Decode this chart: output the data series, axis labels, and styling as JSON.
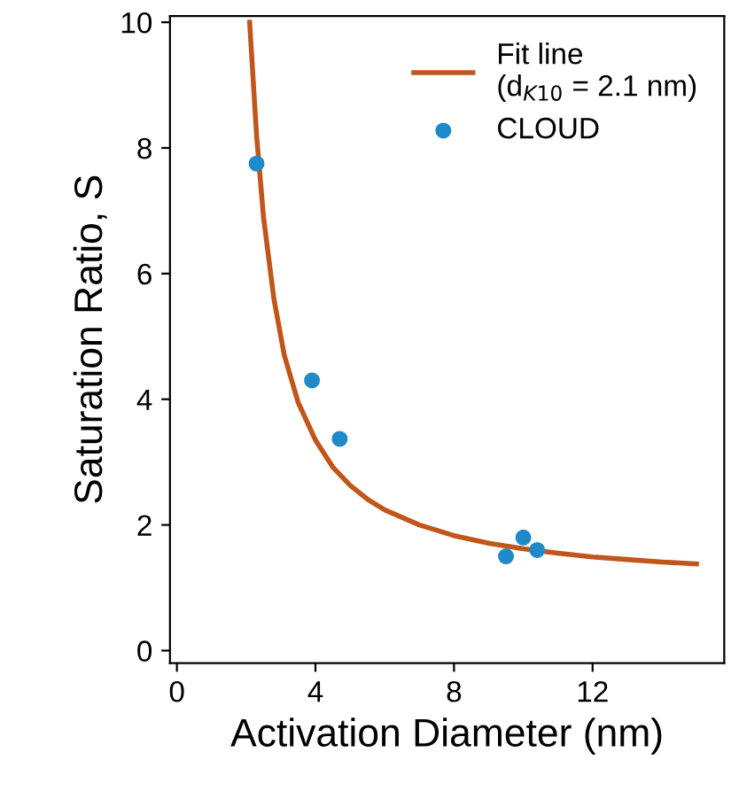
{
  "chart_data": {
    "type": "scatter",
    "xlabel": "Activation Diameter (nm)",
    "ylabel": "Saturation Ratio, S",
    "xlim": [
      -0.2,
      15.8
    ],
    "ylim": [
      -0.2,
      10.1
    ],
    "xticks": [
      0,
      4,
      8,
      12
    ],
    "yticks": [
      0,
      2,
      4,
      6,
      8,
      10
    ],
    "grid": false,
    "legend": "top right",
    "series": [
      {
        "name": "Fit line\n(d$_{K10}$ = 2.1 nm)",
        "type": "line",
        "color": "#c0561a",
        "marker": "none",
        "line_style": "solid",
        "x": [
          2.1,
          2.3,
          2.5,
          2.8,
          3.1,
          3.5,
          4.0,
          4.5,
          5.0,
          5.5,
          6.0,
          7.0,
          8.0,
          9.0,
          10.0,
          11.0,
          12.0,
          13.0,
          14.0,
          15.0
        ],
        "values": [
          10.0,
          8.2,
          6.9,
          5.6,
          4.7,
          3.95,
          3.35,
          2.92,
          2.63,
          2.41,
          2.24,
          2.0,
          1.83,
          1.71,
          1.62,
          1.55,
          1.49,
          1.45,
          1.41,
          1.38
        ]
      },
      {
        "name": "CLOUD",
        "color": "#1f8ac8",
        "marker": "circle",
        "x": [
          2.3,
          3.9,
          4.7,
          9.5,
          10.0,
          10.4
        ],
        "values": [
          7.75,
          4.3,
          3.37,
          1.5,
          1.8,
          1.6
        ]
      }
    ]
  }
}
